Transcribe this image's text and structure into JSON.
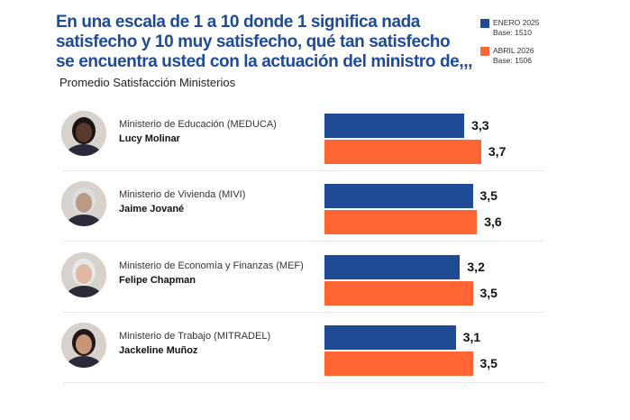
{
  "chart_data": {
    "type": "bar",
    "orientation": "horizontal",
    "title": "En una escala de 1 a 10 donde 1 significa nada satisfecho y 10 muy satisfecho, qué tan satisfecho se encuentra usted con la actuación del ministro de,,,",
    "subtitle": "Promedio Satisfacción Ministerios",
    "legend_position": "top-right",
    "categories": [
      {
        "ministry": "Ministerio de Educación (MEDUCA)",
        "name": "Lucy Molinar"
      },
      {
        "ministry": "Ministerio de Vivienda (MIVI)",
        "name": "Jaime Jované"
      },
      {
        "ministry": "Ministerio de Economía y Finanzas (MEF)",
        "name": "Felipe Chapman"
      },
      {
        "ministry": "Ministerio de Trabajo (MITRADEL)",
        "name": "Jackeline Muñoz"
      }
    ],
    "series": [
      {
        "name": "ENERO 2025",
        "base": "Base: 1510",
        "color": "#1f4a94",
        "values": [
          3.3,
          3.5,
          3.2,
          3.1
        ],
        "labels": [
          "3,3",
          "3,5",
          "3,2",
          "3,1"
        ]
      },
      {
        "name": "ABRIL 2026",
        "base": "Base: 1506",
        "color": "#ff6633",
        "values": [
          3.7,
          3.6,
          3.5,
          3.5
        ],
        "labels": [
          "3,7",
          "3,6",
          "3,5",
          "3,5"
        ]
      }
    ],
    "grid": false
  }
}
